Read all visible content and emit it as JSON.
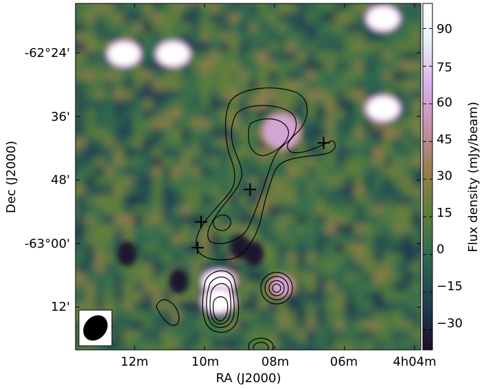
{
  "chart_data": {
    "type": "heatmap",
    "xlabel": "RA (J2000)",
    "ylabel": "Dec (J2000)",
    "x_ticks": [
      "12m",
      "10m",
      "08m",
      "06m",
      "4h04m"
    ],
    "y_ticks": [
      "-62°24'",
      "36'",
      "48'",
      "-63°00'",
      "12'"
    ],
    "colorbar": {
      "label": "Flux density (mJy/beam)",
      "ticks": [
        "90",
        "75",
        "60",
        "45",
        "30",
        "15",
        "0",
        "−15",
        "−30"
      ],
      "range": [
        -38,
        100
      ],
      "colormap": "cubehelix",
      "colors": [
        "#1b0f2b",
        "#1f3a4f",
        "#2e6a4f",
        "#5d7f3a",
        "#9a7d4f",
        "#c58fa6",
        "#d8b0e8",
        "#e6f5f7",
        "#ffffff"
      ]
    },
    "sources": [
      {
        "label": "bright source",
        "ra_min": 12.3,
        "dec_arcmin": -24.2,
        "peak_mjy": 100
      },
      {
        "label": "bright source",
        "ra_min": 10.9,
        "dec_arcmin": -24.2,
        "peak_mjy": 100
      },
      {
        "label": "bright source",
        "ra_min": 4.9,
        "dec_arcmin": -17.5,
        "peak_mjy": 100
      },
      {
        "label": "bright source",
        "ra_min": 4.9,
        "dec_arcmin": -34.5,
        "peak_mjy": 100
      },
      {
        "label": "bright source",
        "ra_min": 9.6,
        "dec_arcmin": -67.3,
        "peak_mjy": 100
      },
      {
        "label": "bright source",
        "ra_min": 9.6,
        "dec_arcmin": -70.8,
        "peak_mjy": 100
      },
      {
        "label": "extended emission",
        "ra_min": 7.8,
        "dec_arcmin": -38.8,
        "peak_mjy": 60
      },
      {
        "label": "compact source",
        "ra_min": 7.8,
        "dec_arcmin": -68.0,
        "peak_mjy": 60
      }
    ],
    "markers": [
      {
        "symbol": "+",
        "ra_min": 6.6,
        "dec_arcmin": -41.0
      },
      {
        "symbol": "+",
        "ra_min": 8.7,
        "dec_arcmin": -49.8
      },
      {
        "symbol": "+",
        "ra_min": 10.1,
        "dec_arcmin": -55.9
      },
      {
        "symbol": "+",
        "ra_min": 10.2,
        "dec_arcmin": -60.8
      }
    ],
    "beam": {
      "shape": "ellipse",
      "color": "#000000"
    },
    "grid": false
  }
}
